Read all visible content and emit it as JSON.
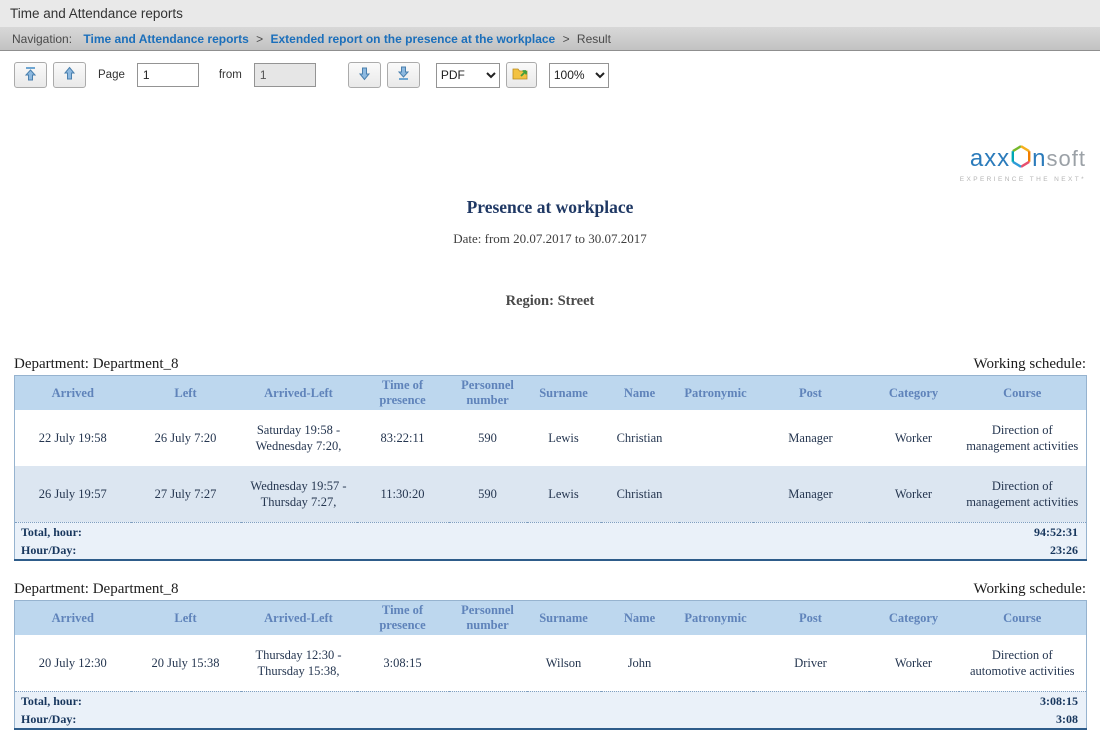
{
  "title_bar": {
    "title": "Time and Attendance reports"
  },
  "breadcrumb": {
    "label": "Navigation:",
    "separator": ">",
    "links": [
      "Time and Attendance reports",
      "Extended report on the presence at the workplace"
    ],
    "current": "Result"
  },
  "toolbar": {
    "page_label": "Page",
    "page_value": "1",
    "from_label": "from",
    "total_pages": "1",
    "format_selected": "PDF",
    "zoom_selected": "100%"
  },
  "report": {
    "logo": {
      "axx": "axx",
      "n": "n",
      "soft": "soft",
      "tagline": "EXPERIENCE THE NEXT*"
    },
    "title": "Presence at workplace",
    "date_line": "Date: from 20.07.2017 to 30.07.2017",
    "region_line": "Region: Street"
  },
  "columns": [
    "Arrived",
    "Left",
    "Arrived-Left",
    "Time of presence",
    "Personnel number",
    "Surname",
    "Name",
    "Patronymic",
    "Post",
    "Category",
    "Course"
  ],
  "tables": [
    {
      "caption_left": "Department: Department_8",
      "caption_right": "Working schedule:",
      "rows": [
        [
          "22 July 19:58",
          "26 July 7:20",
          "Saturday 19:58 - Wednesday 7:20,",
          "83:22:11",
          "590",
          "Lewis",
          "Christian",
          "",
          "Manager",
          "Worker",
          "Direction of management activities"
        ],
        [
          "26 July 19:57",
          "27 July 7:27",
          "Wednesday 19:57 - Thursday 7:27,",
          "11:30:20",
          "590",
          "Lewis",
          "Christian",
          "",
          "Manager",
          "Worker",
          "Direction of management activities"
        ]
      ],
      "totals": [
        {
          "label": "Total, hour:",
          "value": "94:52:31"
        },
        {
          "label": "Hour/Day:",
          "value": "23:26"
        }
      ]
    },
    {
      "caption_left": "Department: Department_8",
      "caption_right": "Working schedule:",
      "rows": [
        [
          "20 July 12:30",
          "20 July 15:38",
          "Thursday 12:30 - Thursday 15:38,",
          "3:08:15",
          "",
          "Wilson",
          "John",
          "",
          "Driver",
          "Worker",
          "Direction of automotive activities"
        ]
      ],
      "totals": [
        {
          "label": "Total, hour:",
          "value": "3:08:15"
        },
        {
          "label": "Hour/Day:",
          "value": "3:08"
        }
      ]
    }
  ]
}
